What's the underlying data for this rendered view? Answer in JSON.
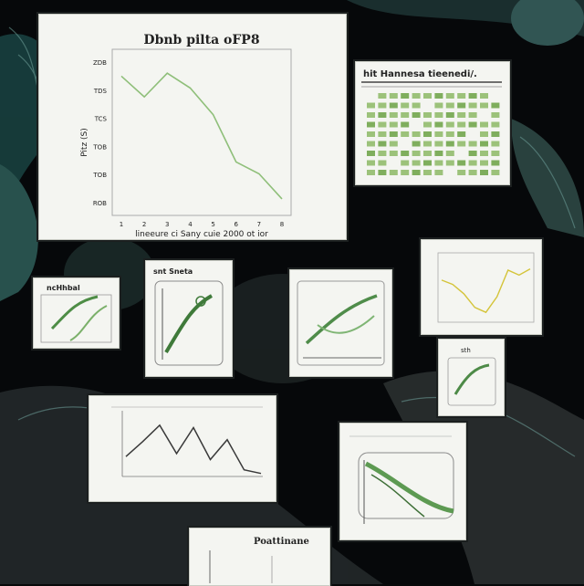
{
  "main_chart": {
    "title": "Dbnb pilta oFP8",
    "xlabel": "lineeure ci Sany cuie 2000 ot ior",
    "ylabel": "Pitz (S)",
    "x_ticks": [
      "1",
      "2",
      "3",
      "4",
      "5",
      "6",
      "7",
      "8"
    ],
    "y_ticks": [
      "ZDB",
      "TDS",
      "TCS",
      "TOB",
      "TOB",
      "ROB"
    ],
    "values": [
      0.88,
      0.74,
      0.9,
      0.8,
      0.62,
      0.3,
      0.22,
      0.05
    ],
    "ylim": [
      0,
      1
    ],
    "line_color": "#8fbf7a"
  },
  "green_table": {
    "title": "hit Hannesa tieenedi/."
  },
  "small_card_a": {
    "title": "ncHhbal"
  },
  "small_card_b": {
    "title": "snt Sneta"
  },
  "yellow_chart": {
    "values": [
      0.62,
      0.55,
      0.4,
      0.18,
      0.1,
      0.35,
      0.78,
      0.7,
      0.8
    ],
    "line_color": "#d4c43a"
  },
  "zigzag_chart": {
    "values": [
      0.3,
      0.55,
      0.82,
      0.35,
      0.78,
      0.25,
      0.58,
      0.08,
      0.02
    ],
    "line_color": "#3a3a3a"
  },
  "tiny_card": {
    "label": "sth"
  },
  "bottom_card": {
    "title": "Poattinane"
  }
}
